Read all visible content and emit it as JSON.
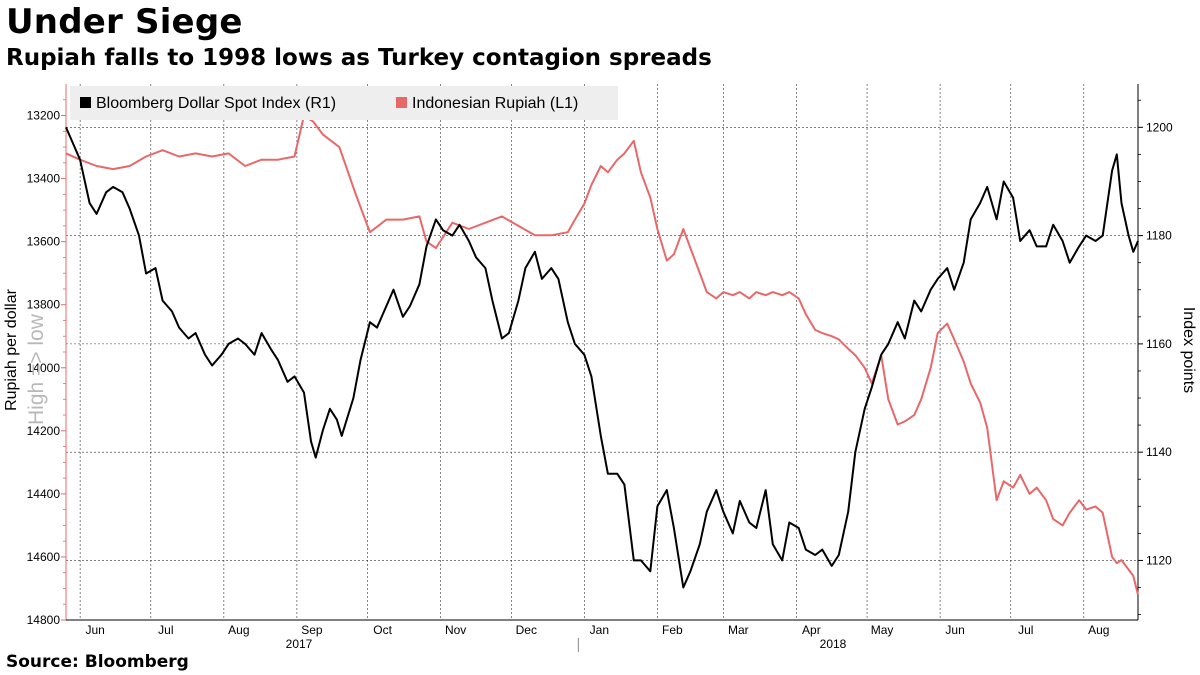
{
  "title": "Under Siege",
  "subtitle": "Rupiah falls to 1998 lows as Turkey contagion spreads",
  "source": "Source: Bloomberg",
  "chart_data": {
    "type": "line",
    "x_start": "2017-05-26",
    "x_end": "2018-08-24",
    "x_ticks": [
      {
        "date": "2017-06-01",
        "label": "Jun"
      },
      {
        "date": "2017-07-01",
        "label": "Jul"
      },
      {
        "date": "2017-08-01",
        "label": "Aug"
      },
      {
        "date": "2017-09-01",
        "label": "Sep"
      },
      {
        "date": "2017-10-01",
        "label": "Oct"
      },
      {
        "date": "2017-11-01",
        "label": "Nov"
      },
      {
        "date": "2017-12-01",
        "label": "Dec"
      },
      {
        "date": "2018-01-01",
        "label": "Jan"
      },
      {
        "date": "2018-02-01",
        "label": "Feb"
      },
      {
        "date": "2018-03-01",
        "label": "Mar"
      },
      {
        "date": "2018-04-01",
        "label": "Apr"
      },
      {
        "date": "2018-05-01",
        "label": "May"
      },
      {
        "date": "2018-06-01",
        "label": "Jun"
      },
      {
        "date": "2018-07-01",
        "label": "Jul"
      },
      {
        "date": "2018-08-01",
        "label": "Aug"
      }
    ],
    "year_labels": [
      "2017",
      "2018"
    ],
    "left_axis": {
      "label": "Rupiah per dollar",
      "inverted": true,
      "range": [
        13100,
        14800
      ],
      "ticks": [
        "13200",
        "13400",
        "13600",
        "13800",
        "14000",
        "14200",
        "14400",
        "14600",
        "14800"
      ],
      "annotation": "High => low"
    },
    "right_axis": {
      "label": "Index points",
      "range": [
        1109,
        1208
      ],
      "ticks": [
        "1120",
        "1140",
        "1160",
        "1180",
        "1200"
      ]
    },
    "legend_position": "top-left",
    "series": [
      {
        "name": "Bloomberg Dollar Spot Index (R1)",
        "axis": "right",
        "color": "#000000",
        "points": [
          [
            "2017-05-26",
            1200
          ],
          [
            "2017-05-29",
            1197
          ],
          [
            "2017-06-01",
            1194
          ],
          [
            "2017-06-05",
            1186
          ],
          [
            "2017-06-08",
            1184
          ],
          [
            "2017-06-12",
            1188
          ],
          [
            "2017-06-15",
            1189
          ],
          [
            "2017-06-19",
            1188
          ],
          [
            "2017-06-22",
            1185
          ],
          [
            "2017-06-26",
            1180
          ],
          [
            "2017-06-29",
            1173
          ],
          [
            "2017-07-03",
            1174
          ],
          [
            "2017-07-06",
            1168
          ],
          [
            "2017-07-10",
            1166
          ],
          [
            "2017-07-13",
            1163
          ],
          [
            "2017-07-17",
            1161
          ],
          [
            "2017-07-20",
            1162
          ],
          [
            "2017-07-24",
            1158
          ],
          [
            "2017-07-27",
            1156
          ],
          [
            "2017-07-31",
            1158
          ],
          [
            "2017-08-03",
            1160
          ],
          [
            "2017-08-07",
            1161
          ],
          [
            "2017-08-10",
            1160
          ],
          [
            "2017-08-14",
            1158
          ],
          [
            "2017-08-17",
            1162
          ],
          [
            "2017-08-21",
            1159
          ],
          [
            "2017-08-24",
            1157
          ],
          [
            "2017-08-28",
            1153
          ],
          [
            "2017-08-31",
            1154
          ],
          [
            "2017-09-04",
            1151
          ],
          [
            "2017-09-07",
            1142
          ],
          [
            "2017-09-09",
            1139
          ],
          [
            "2017-09-12",
            1144
          ],
          [
            "2017-09-15",
            1148
          ],
          [
            "2017-09-18",
            1146
          ],
          [
            "2017-09-20",
            1143
          ],
          [
            "2017-09-25",
            1150
          ],
          [
            "2017-09-28",
            1157
          ],
          [
            "2017-10-02",
            1164
          ],
          [
            "2017-10-05",
            1163
          ],
          [
            "2017-10-09",
            1167
          ],
          [
            "2017-10-12",
            1170
          ],
          [
            "2017-10-16",
            1165
          ],
          [
            "2017-10-19",
            1167
          ],
          [
            "2017-10-23",
            1171
          ],
          [
            "2017-10-26",
            1178
          ],
          [
            "2017-10-30",
            1183
          ],
          [
            "2017-11-02",
            1181
          ],
          [
            "2017-11-06",
            1180
          ],
          [
            "2017-11-09",
            1182
          ],
          [
            "2017-11-13",
            1179
          ],
          [
            "2017-11-16",
            1176
          ],
          [
            "2017-11-20",
            1174
          ],
          [
            "2017-11-23",
            1168
          ],
          [
            "2017-11-27",
            1161
          ],
          [
            "2017-11-30",
            1162
          ],
          [
            "2017-12-04",
            1168
          ],
          [
            "2017-12-07",
            1174
          ],
          [
            "2017-12-11",
            1177
          ],
          [
            "2017-12-14",
            1172
          ],
          [
            "2017-12-18",
            1174
          ],
          [
            "2017-12-21",
            1172
          ],
          [
            "2017-12-25",
            1164
          ],
          [
            "2017-12-28",
            1160
          ],
          [
            "2018-01-01",
            1158
          ],
          [
            "2018-01-04",
            1154
          ],
          [
            "2018-01-08",
            1143
          ],
          [
            "2018-01-11",
            1136
          ],
          [
            "2018-01-15",
            1136
          ],
          [
            "2018-01-18",
            1134
          ],
          [
            "2018-01-22",
            1120
          ],
          [
            "2018-01-25",
            1120
          ],
          [
            "2018-01-29",
            1118
          ],
          [
            "2018-02-01",
            1130
          ],
          [
            "2018-02-05",
            1133
          ],
          [
            "2018-02-08",
            1126
          ],
          [
            "2018-02-12",
            1115
          ],
          [
            "2018-02-15",
            1118
          ],
          [
            "2018-02-19",
            1123
          ],
          [
            "2018-02-22",
            1129
          ],
          [
            "2018-02-26",
            1133
          ],
          [
            "2018-03-01",
            1129
          ],
          [
            "2018-03-05",
            1125
          ],
          [
            "2018-03-08",
            1131
          ],
          [
            "2018-03-12",
            1127
          ],
          [
            "2018-03-15",
            1126
          ],
          [
            "2018-03-19",
            1133
          ],
          [
            "2018-03-22",
            1123
          ],
          [
            "2018-03-26",
            1120
          ],
          [
            "2018-03-29",
            1127
          ],
          [
            "2018-04-02",
            1126
          ],
          [
            "2018-04-05",
            1122
          ],
          [
            "2018-04-09",
            1121
          ],
          [
            "2018-04-12",
            1122
          ],
          [
            "2018-04-16",
            1119
          ],
          [
            "2018-04-19",
            1121
          ],
          [
            "2018-04-23",
            1129
          ],
          [
            "2018-04-26",
            1140
          ],
          [
            "2018-04-30",
            1148
          ],
          [
            "2018-05-03",
            1152
          ],
          [
            "2018-05-07",
            1158
          ],
          [
            "2018-05-10",
            1160
          ],
          [
            "2018-05-14",
            1164
          ],
          [
            "2018-05-17",
            1161
          ],
          [
            "2018-05-21",
            1168
          ],
          [
            "2018-05-24",
            1166
          ],
          [
            "2018-05-28",
            1170
          ],
          [
            "2018-05-31",
            1172
          ],
          [
            "2018-06-04",
            1174
          ],
          [
            "2018-06-07",
            1170
          ],
          [
            "2018-06-11",
            1175
          ],
          [
            "2018-06-14",
            1183
          ],
          [
            "2018-06-18",
            1186
          ],
          [
            "2018-06-21",
            1189
          ],
          [
            "2018-06-25",
            1183
          ],
          [
            "2018-06-28",
            1190
          ],
          [
            "2018-07-02",
            1187
          ],
          [
            "2018-07-05",
            1179
          ],
          [
            "2018-07-09",
            1181
          ],
          [
            "2018-07-12",
            1178
          ],
          [
            "2018-07-16",
            1178
          ],
          [
            "2018-07-19",
            1182
          ],
          [
            "2018-07-23",
            1179
          ],
          [
            "2018-07-26",
            1175
          ],
          [
            "2018-07-30",
            1178
          ],
          [
            "2018-08-02",
            1180
          ],
          [
            "2018-08-06",
            1179
          ],
          [
            "2018-08-09",
            1180
          ],
          [
            "2018-08-13",
            1192
          ],
          [
            "2018-08-15",
            1195
          ],
          [
            "2018-08-17",
            1186
          ],
          [
            "2018-08-20",
            1180
          ],
          [
            "2018-08-22",
            1177
          ],
          [
            "2018-08-24",
            1179
          ]
        ]
      },
      {
        "name": "Indonesian Rupiah (L1)",
        "axis": "left",
        "color": "#e8686a",
        "points": [
          [
            "2017-05-26",
            13320
          ],
          [
            "2017-06-01",
            13340
          ],
          [
            "2017-06-08",
            13360
          ],
          [
            "2017-06-15",
            13370
          ],
          [
            "2017-06-22",
            13360
          ],
          [
            "2017-06-29",
            13330
          ],
          [
            "2017-07-06",
            13310
          ],
          [
            "2017-07-13",
            13330
          ],
          [
            "2017-07-20",
            13320
          ],
          [
            "2017-07-27",
            13330
          ],
          [
            "2017-08-03",
            13320
          ],
          [
            "2017-08-10",
            13360
          ],
          [
            "2017-08-17",
            13340
          ],
          [
            "2017-08-24",
            13340
          ],
          [
            "2017-08-31",
            13330
          ],
          [
            "2017-09-04",
            13200
          ],
          [
            "2017-09-08",
            13220
          ],
          [
            "2017-09-12",
            13260
          ],
          [
            "2017-09-19",
            13300
          ],
          [
            "2017-09-26",
            13450
          ],
          [
            "2017-10-02",
            13570
          ],
          [
            "2017-10-09",
            13530
          ],
          [
            "2017-10-16",
            13530
          ],
          [
            "2017-10-23",
            13520
          ],
          [
            "2017-10-26",
            13600
          ],
          [
            "2017-10-30",
            13620
          ],
          [
            "2017-11-06",
            13540
          ],
          [
            "2017-11-13",
            13560
          ],
          [
            "2017-11-20",
            13540
          ],
          [
            "2017-11-27",
            13520
          ],
          [
            "2017-12-04",
            13550
          ],
          [
            "2017-12-11",
            13580
          ],
          [
            "2017-12-18",
            13580
          ],
          [
            "2017-12-25",
            13570
          ],
          [
            "2017-12-28",
            13530
          ],
          [
            "2018-01-01",
            13480
          ],
          [
            "2018-01-04",
            13420
          ],
          [
            "2018-01-08",
            13360
          ],
          [
            "2018-01-11",
            13380
          ],
          [
            "2018-01-15",
            13340
          ],
          [
            "2018-01-18",
            13320
          ],
          [
            "2018-01-22",
            13280
          ],
          [
            "2018-01-25",
            13380
          ],
          [
            "2018-01-29",
            13460
          ],
          [
            "2018-02-01",
            13560
          ],
          [
            "2018-02-05",
            13660
          ],
          [
            "2018-02-08",
            13640
          ],
          [
            "2018-02-12",
            13560
          ],
          [
            "2018-02-15",
            13620
          ],
          [
            "2018-02-19",
            13700
          ],
          [
            "2018-02-22",
            13760
          ],
          [
            "2018-02-26",
            13780
          ],
          [
            "2018-03-01",
            13760
          ],
          [
            "2018-03-05",
            13770
          ],
          [
            "2018-03-08",
            13760
          ],
          [
            "2018-03-12",
            13780
          ],
          [
            "2018-03-15",
            13760
          ],
          [
            "2018-03-19",
            13770
          ],
          [
            "2018-03-22",
            13760
          ],
          [
            "2018-03-26",
            13770
          ],
          [
            "2018-03-29",
            13760
          ],
          [
            "2018-04-02",
            13780
          ],
          [
            "2018-04-05",
            13830
          ],
          [
            "2018-04-09",
            13880
          ],
          [
            "2018-04-12",
            13890
          ],
          [
            "2018-04-16",
            13900
          ],
          [
            "2018-04-19",
            13910
          ],
          [
            "2018-04-23",
            13940
          ],
          [
            "2018-04-26",
            13960
          ],
          [
            "2018-04-30",
            14000
          ],
          [
            "2018-05-03",
            14050
          ],
          [
            "2018-05-07",
            13960
          ],
          [
            "2018-05-10",
            14100
          ],
          [
            "2018-05-14",
            14180
          ],
          [
            "2018-05-17",
            14170
          ],
          [
            "2018-05-21",
            14150
          ],
          [
            "2018-05-24",
            14100
          ],
          [
            "2018-05-28",
            14000
          ],
          [
            "2018-05-31",
            13890
          ],
          [
            "2018-06-04",
            13860
          ],
          [
            "2018-06-07",
            13910
          ],
          [
            "2018-06-11",
            13980
          ],
          [
            "2018-06-14",
            14050
          ],
          [
            "2018-06-18",
            14110
          ],
          [
            "2018-06-21",
            14190
          ],
          [
            "2018-06-25",
            14420
          ],
          [
            "2018-06-28",
            14360
          ],
          [
            "2018-07-02",
            14380
          ],
          [
            "2018-07-05",
            14340
          ],
          [
            "2018-07-09",
            14400
          ],
          [
            "2018-07-12",
            14380
          ],
          [
            "2018-07-16",
            14420
          ],
          [
            "2018-07-19",
            14480
          ],
          [
            "2018-07-23",
            14500
          ],
          [
            "2018-07-26",
            14460
          ],
          [
            "2018-07-30",
            14420
          ],
          [
            "2018-08-02",
            14450
          ],
          [
            "2018-08-06",
            14440
          ],
          [
            "2018-08-09",
            14460
          ],
          [
            "2018-08-13",
            14600
          ],
          [
            "2018-08-15",
            14620
          ],
          [
            "2018-08-17",
            14610
          ],
          [
            "2018-08-20",
            14640
          ],
          [
            "2018-08-22",
            14660
          ],
          [
            "2018-08-24",
            14720
          ]
        ]
      }
    ]
  }
}
